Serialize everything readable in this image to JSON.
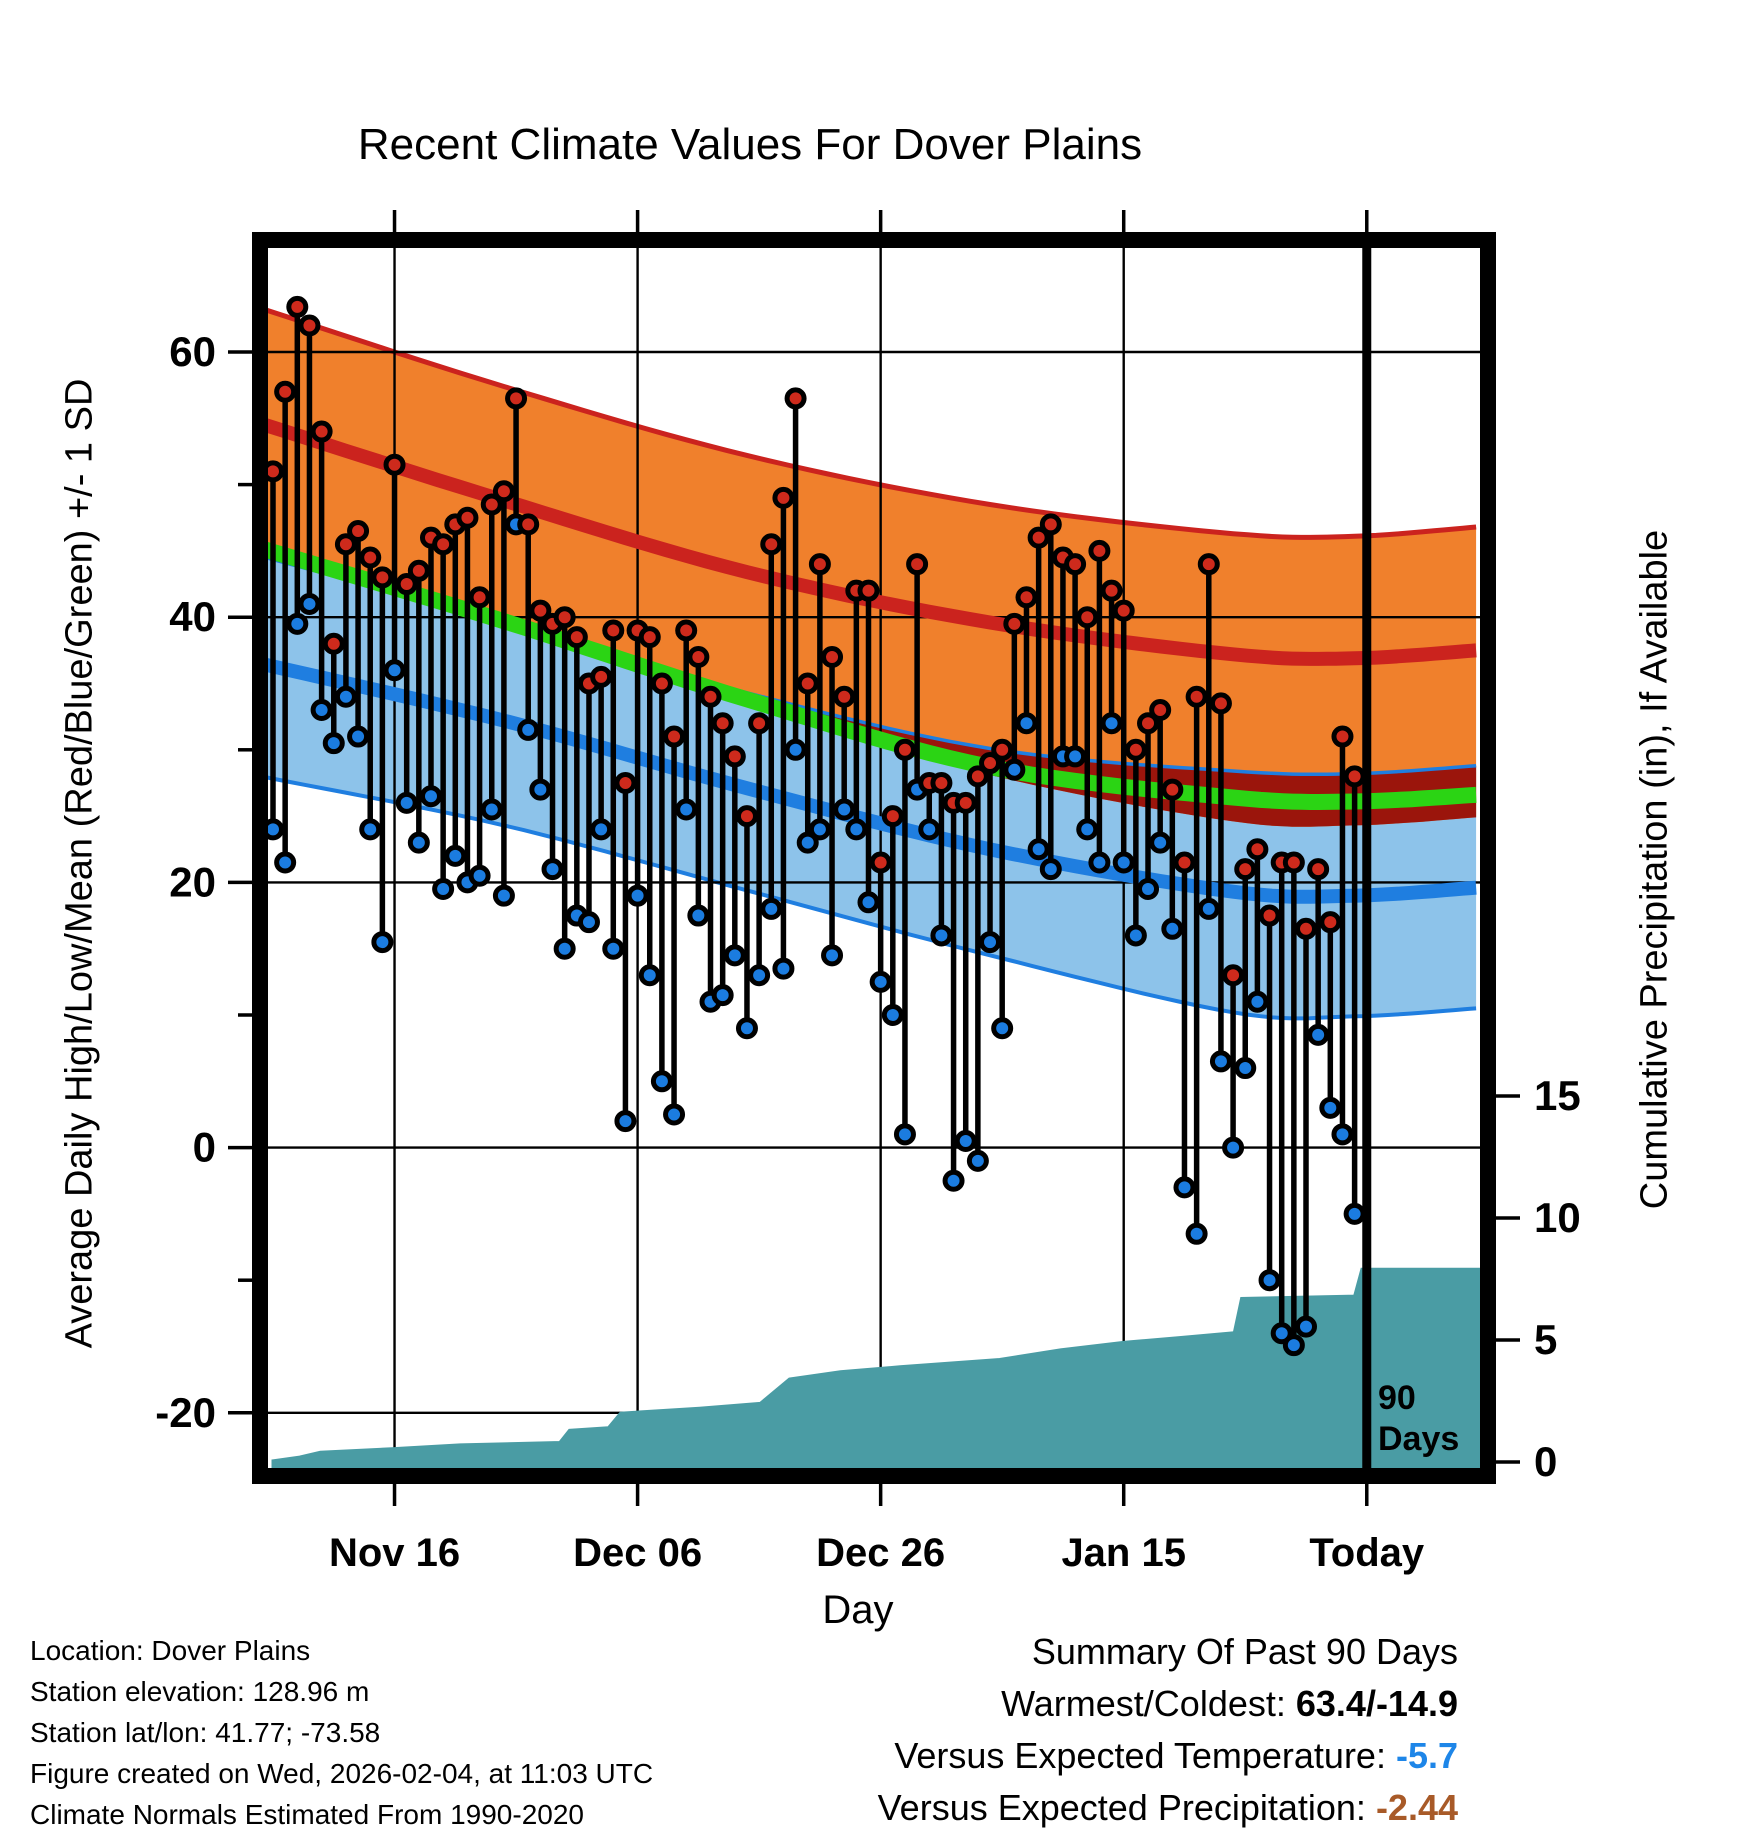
{
  "title": "Recent Climate Values For Dover Plains",
  "annotation_90_days": {
    "line1": "90",
    "line2": "Days"
  },
  "footer": {
    "lines": [
      "Location: Dover Plains",
      "Station elevation: 128.96 m",
      "Station lat/lon: 41.77; -73.58",
      "Figure created on Wed, 2026-02-04, at 11:03 UTC",
      "Climate Normals Estimated From 1990-2020"
    ]
  },
  "summary": {
    "title": "Summary Of Past 90 Days",
    "rows": [
      {
        "label": "Warmest/Coldest: ",
        "value": "63.4/-14.9",
        "value_color": "#000000"
      },
      {
        "label": "Versus Expected Temperature: ",
        "value": "-5.7",
        "value_color": "#1E86E8"
      },
      {
        "label": "Versus Expected Precipitation: ",
        "value": "-2.44",
        "value_color": "#A85A28"
      }
    ]
  },
  "chart_data": {
    "type": "climate-stem-bands-area",
    "title": "Recent Climate Values For Dover Plains",
    "x_axis": {
      "label": "Day",
      "ticks": [
        {
          "day": 11,
          "label": "Nov 16"
        },
        {
          "day": 31,
          "label": "Dec 06"
        },
        {
          "day": 51,
          "label": "Dec 26"
        },
        {
          "day": 71,
          "label": "Jan 15"
        },
        {
          "day": 91,
          "label": "Today"
        }
      ],
      "range_days": [
        0.6,
        100.3
      ]
    },
    "y_axis": {
      "label": "Average Daily High/Low/Mean (Red/Blue/Green) +/- 1 SD",
      "ticks": [
        60,
        40,
        20,
        0,
        -20
      ],
      "minor_ticks": [
        50,
        30,
        10,
        -10
      ],
      "range": [
        -24,
        67.8
      ]
    },
    "y2_axis": {
      "label": "Cumulative Precipitation (in), If Available",
      "ticks": [
        15,
        10,
        5,
        0
      ],
      "range": [
        0,
        49
      ]
    },
    "today_day": 91,
    "daily": {
      "first_day_label": "Nov 06",
      "highs": [
        51,
        57,
        63.4,
        62,
        54,
        38,
        45.5,
        46.5,
        44.5,
        43,
        51.5,
        42.5,
        43.5,
        46,
        45.5,
        47,
        47.5,
        41.5,
        48.5,
        49.5,
        56.5,
        47,
        40.5,
        39.5,
        40,
        38.5,
        35,
        35.5,
        39,
        27.5,
        39,
        38.5,
        35,
        31,
        39,
        37,
        34,
        32,
        29.5,
        25,
        32,
        45.5,
        49,
        56.5,
        35,
        44,
        37,
        34,
        42,
        42,
        21.5,
        25,
        30,
        44,
        27.5,
        27.5,
        26,
        26,
        28,
        29,
        30,
        39.5,
        41.5,
        46,
        47,
        44.5,
        44,
        40,
        45,
        42,
        40.5,
        30,
        32,
        33,
        27,
        21.5,
        34,
        44,
        33.5,
        13,
        21,
        22.5,
        17.5,
        21.5,
        21.5,
        16.5,
        21,
        17,
        31,
        28
      ],
      "lows": [
        24,
        21.5,
        39.5,
        41,
        33,
        30.5,
        34,
        31,
        24,
        15.5,
        36,
        26,
        23,
        26.5,
        19.5,
        22,
        20,
        20.5,
        25.5,
        19,
        47,
        31.5,
        27,
        21,
        15,
        17.5,
        17,
        24,
        15,
        2,
        19,
        13,
        5,
        2.5,
        25.5,
        17.5,
        11,
        11.5,
        14.5,
        9,
        13,
        18,
        13.5,
        30,
        23,
        24,
        14.5,
        25.5,
        24,
        18.5,
        12.5,
        10,
        1,
        27,
        24,
        16,
        -2.5,
        0.5,
        -1,
        15.5,
        9,
        28.5,
        32,
        22.5,
        21,
        29.5,
        29.5,
        24,
        21.5,
        32,
        21.5,
        16,
        19.5,
        23,
        16.5,
        -3,
        -6.5,
        18,
        6.5,
        0,
        6,
        11,
        -10,
        -14,
        -14.9,
        -13.5,
        8.5,
        3,
        1,
        -5
      ]
    },
    "normals": {
      "high_plus_1sd": [
        [
          0,
          63.3
        ],
        [
          20,
          57.4
        ],
        [
          40,
          52.2
        ],
        [
          60,
          48.5
        ],
        [
          80,
          46.3
        ],
        [
          90,
          46.1
        ],
        [
          100,
          46.8
        ]
      ],
      "avg_high": [
        [
          0,
          54.6
        ],
        [
          20,
          48.8
        ],
        [
          40,
          43.4
        ],
        [
          60,
          39.6
        ],
        [
          80,
          37.2
        ],
        [
          90,
          36.9
        ],
        [
          100,
          37.5
        ]
      ],
      "high_minus_1sd": [
        [
          0,
          45.8
        ],
        [
          20,
          39.8
        ],
        [
          40,
          33.4
        ],
        [
          60,
          28.1
        ],
        [
          80,
          24.6
        ],
        [
          90,
          24.3
        ],
        [
          100,
          24.9
        ]
      ],
      "mean": [
        [
          0,
          45.2
        ],
        [
          20,
          39.7
        ],
        [
          40,
          33.8
        ],
        [
          60,
          28.7
        ],
        [
          80,
          26.4
        ],
        [
          90,
          26.1
        ],
        [
          100,
          26.6
        ]
      ],
      "low_plus_1sd": [
        [
          0,
          44.6
        ],
        [
          20,
          39.6
        ],
        [
          40,
          34.3
        ],
        [
          60,
          30.1
        ],
        [
          80,
          28.4
        ],
        [
          90,
          28.2
        ],
        [
          100,
          28.8
        ]
      ],
      "avg_low": [
        [
          0,
          36.5
        ],
        [
          20,
          32.2
        ],
        [
          40,
          27.1
        ],
        [
          60,
          22.5
        ],
        [
          80,
          19.3
        ],
        [
          90,
          19.0
        ],
        [
          100,
          19.6
        ]
      ],
      "low_minus_1sd": [
        [
          0,
          28.0
        ],
        [
          20,
          24.3
        ],
        [
          40,
          19.4
        ],
        [
          60,
          14.5
        ],
        [
          80,
          10.2
        ],
        [
          90,
          9.9
        ],
        [
          100,
          10.5
        ]
      ]
    },
    "cumulative_precip_in": [
      [
        1,
        0.05
      ],
      [
        3.2,
        0.2
      ],
      [
        4.9,
        0.4
      ],
      [
        11,
        0.55
      ],
      [
        16.4,
        0.7
      ],
      [
        24.6,
        0.8
      ],
      [
        25.4,
        1.3
      ],
      [
        28.6,
        1.4
      ],
      [
        29.6,
        2.0
      ],
      [
        36.1,
        2.2
      ],
      [
        41.1,
        2.4
      ],
      [
        43.5,
        3.4
      ],
      [
        47.7,
        3.7
      ],
      [
        52.6,
        3.9
      ],
      [
        60.8,
        4.2
      ],
      [
        65.8,
        4.6
      ],
      [
        71,
        4.9
      ],
      [
        75.6,
        5.1
      ],
      [
        80.1,
        5.3
      ],
      [
        80.7,
        6.7
      ],
      [
        90,
        6.8
      ],
      [
        90.6,
        7.9
      ],
      [
        100.3,
        7.9
      ]
    ],
    "colors": {
      "orange_band": "#F0802C",
      "red_line": "#CB231E",
      "maroon_overlap": "#9B150C",
      "green_line": "#2BD414",
      "light_blue_band": "#8DC3EA",
      "blue_line": "#1F7EE0",
      "dot_red": "#CE2A1C",
      "dot_blue": "#1B7CE0",
      "precip_teal": "#4A9CA4",
      "grid": "#000000"
    },
    "legend_position": "none",
    "grid": true
  }
}
